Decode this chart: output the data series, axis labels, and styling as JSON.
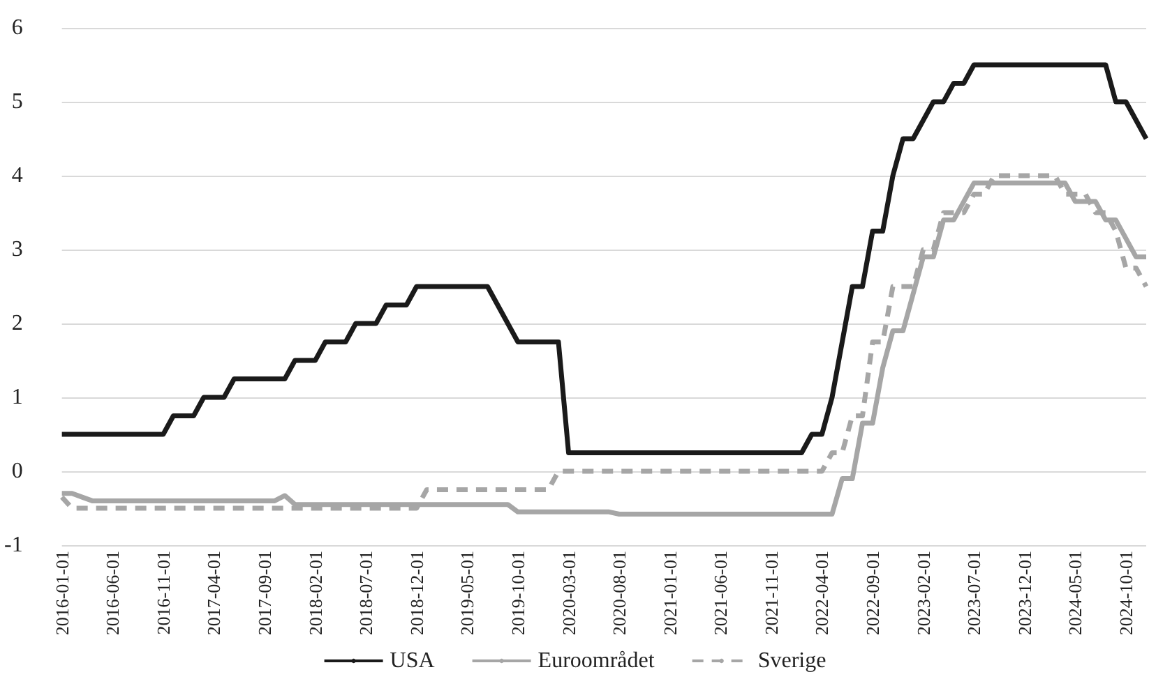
{
  "chart_data": {
    "type": "line",
    "categories": [
      "2016-01-01",
      null,
      null,
      null,
      null,
      "2016-06-01",
      null,
      null,
      null,
      null,
      "2016-11-01",
      null,
      null,
      null,
      null,
      "2017-04-01",
      null,
      null,
      null,
      null,
      "2017-09-01",
      null,
      null,
      null,
      null,
      "2018-02-01",
      null,
      null,
      null,
      null,
      "2018-07-01",
      null,
      null,
      null,
      null,
      "2018-12-01",
      null,
      null,
      null,
      null,
      "2019-05-01",
      null,
      null,
      null,
      null,
      "2019-10-01",
      null,
      null,
      null,
      null,
      "2020-03-01",
      null,
      null,
      null,
      null,
      "2020-08-01",
      null,
      null,
      null,
      null,
      "2021-01-01",
      null,
      null,
      null,
      null,
      "2021-06-01",
      null,
      null,
      null,
      null,
      "2021-11-01",
      null,
      null,
      null,
      null,
      "2022-04-01",
      null,
      null,
      null,
      null,
      "2022-09-01",
      null,
      null,
      null,
      null,
      "2023-02-01",
      null,
      null,
      null,
      null,
      "2023-07-01",
      null,
      null,
      null,
      null,
      "2023-12-01",
      null,
      null,
      null,
      null,
      "2024-05-01",
      null,
      null,
      null,
      null,
      "2024-10-01",
      null,
      null
    ],
    "series": [
      {
        "name": "USA",
        "color": "#1a1a1a",
        "line_style": "solid",
        "values": [
          0.5,
          0.5,
          0.5,
          0.5,
          0.5,
          0.5,
          0.5,
          0.5,
          0.5,
          0.5,
          0.5,
          0.75,
          0.75,
          0.75,
          1,
          1,
          1,
          1.25,
          1.25,
          1.25,
          1.25,
          1.25,
          1.25,
          1.5,
          1.5,
          1.5,
          1.75,
          1.75,
          1.75,
          2,
          2,
          2,
          2.25,
          2.25,
          2.25,
          2.5,
          2.5,
          2.5,
          2.5,
          2.5,
          2.5,
          2.5,
          2.5,
          2.25,
          2,
          1.75,
          1.75,
          1.75,
          1.75,
          1.75,
          0.25,
          0.25,
          0.25,
          0.25,
          0.25,
          0.25,
          0.25,
          0.25,
          0.25,
          0.25,
          0.25,
          0.25,
          0.25,
          0.25,
          0.25,
          0.25,
          0.25,
          0.25,
          0.25,
          0.25,
          0.25,
          0.25,
          0.25,
          0.25,
          0.5,
          0.5,
          1,
          1.75,
          2.5,
          2.5,
          3.25,
          3.25,
          4,
          4.5,
          4.5,
          4.75,
          5,
          5,
          5.25,
          5.25,
          5.5,
          5.5,
          5.5,
          5.5,
          5.5,
          5.5,
          5.5,
          5.5,
          5.5,
          5.5,
          5.5,
          5.5,
          5.5,
          5.5,
          5,
          5,
          4.75,
          4.5
        ]
      },
      {
        "name": "Euroområdet",
        "color": "#a6a6a6",
        "line_style": "solid",
        "values": [
          -0.3,
          -0.3,
          -0.35,
          -0.4,
          -0.4,
          -0.4,
          -0.4,
          -0.4,
          -0.4,
          -0.4,
          -0.4,
          -0.4,
          -0.4,
          -0.4,
          -0.4,
          -0.4,
          -0.4,
          -0.4,
          -0.4,
          -0.4,
          -0.4,
          -0.4,
          -0.33,
          -0.45,
          -0.45,
          -0.45,
          -0.45,
          -0.45,
          -0.45,
          -0.45,
          -0.45,
          -0.45,
          -0.45,
          -0.45,
          -0.45,
          -0.45,
          -0.45,
          -0.45,
          -0.45,
          -0.45,
          -0.45,
          -0.45,
          -0.45,
          -0.45,
          -0.45,
          -0.55,
          -0.55,
          -0.55,
          -0.55,
          -0.55,
          -0.55,
          -0.55,
          -0.55,
          -0.55,
          -0.55,
          -0.58,
          -0.58,
          -0.58,
          -0.58,
          -0.58,
          -0.58,
          -0.58,
          -0.58,
          -0.58,
          -0.58,
          -0.58,
          -0.58,
          -0.58,
          -0.58,
          -0.58,
          -0.58,
          -0.58,
          -0.58,
          -0.58,
          -0.58,
          -0.58,
          -0.58,
          -0.1,
          -0.1,
          0.65,
          0.65,
          1.4,
          1.9,
          1.9,
          2.4,
          2.9,
          2.9,
          3.4,
          3.4,
          3.65,
          3.9,
          3.9,
          3.9,
          3.9,
          3.9,
          3.9,
          3.9,
          3.9,
          3.9,
          3.9,
          3.65,
          3.65,
          3.65,
          3.4,
          3.4,
          3.15,
          2.9,
          2.9
        ]
      },
      {
        "name": "Sverige",
        "color": "#a6a6a6",
        "line_style": "dashed",
        "values": [
          -0.35,
          -0.5,
          -0.5,
          -0.5,
          -0.5,
          -0.5,
          -0.5,
          -0.5,
          -0.5,
          -0.5,
          -0.5,
          -0.5,
          -0.5,
          -0.5,
          -0.5,
          -0.5,
          -0.5,
          -0.5,
          -0.5,
          -0.5,
          -0.5,
          -0.5,
          -0.5,
          -0.5,
          -0.5,
          -0.5,
          -0.5,
          -0.5,
          -0.5,
          -0.5,
          -0.5,
          -0.5,
          -0.5,
          -0.5,
          -0.5,
          -0.5,
          -0.25,
          -0.25,
          -0.25,
          -0.25,
          -0.25,
          -0.25,
          -0.25,
          -0.25,
          -0.25,
          -0.25,
          -0.25,
          -0.25,
          -0.25,
          0,
          0,
          0,
          0,
          0,
          0,
          0,
          0,
          0,
          0,
          0,
          0,
          0,
          0,
          0,
          0,
          0,
          0,
          0,
          0,
          0,
          0,
          0,
          0,
          0,
          0,
          0,
          0.25,
          0.25,
          0.75,
          0.75,
          1.75,
          1.75,
          2.5,
          2.5,
          2.5,
          3,
          3,
          3.5,
          3.5,
          3.5,
          3.75,
          3.75,
          4,
          4,
          4,
          4,
          4,
          4,
          4,
          3.75,
          3.75,
          3.75,
          3.5,
          3.5,
          3.25,
          2.75,
          2.75,
          2.5
        ]
      }
    ],
    "ylim": [
      -1,
      6
    ],
    "yticks": [
      -1,
      0,
      1,
      2,
      3,
      4,
      5,
      6
    ],
    "grid": "y",
    "legend": "bottom",
    "marker": "none"
  }
}
